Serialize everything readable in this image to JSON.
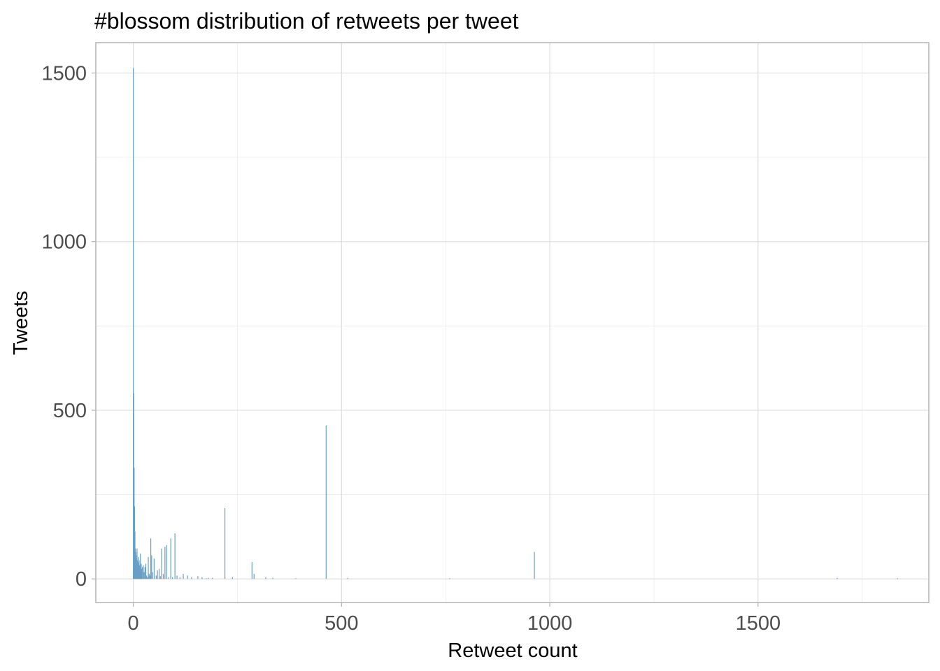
{
  "chart_data": {
    "type": "bar",
    "title": "#blossom distribution of retweets per tweet",
    "xlabel": "Retweet count",
    "ylabel": "Tweets",
    "xlim": [
      -90,
      1910
    ],
    "ylim": [
      -70,
      1590
    ],
    "x_ticks": [
      0,
      500,
      1000,
      1500
    ],
    "x_tick_labels": [
      "0",
      "500",
      "1000",
      "1500"
    ],
    "y_ticks": [
      0,
      500,
      1000,
      1500
    ],
    "y_tick_labels": [
      "0",
      "500",
      "1000",
      "1500"
    ],
    "grid": true,
    "bar_color": "#6a9fc4",
    "x": [
      0,
      1,
      2,
      3,
      4,
      5,
      6,
      7,
      8,
      9,
      10,
      11,
      12,
      13,
      14,
      15,
      16,
      17,
      18,
      19,
      20,
      22,
      24,
      26,
      28,
      30,
      32,
      34,
      36,
      38,
      40,
      42,
      44,
      46,
      50,
      55,
      58,
      62,
      65,
      68,
      72,
      76,
      80,
      85,
      90,
      94,
      100,
      105,
      112,
      120,
      130,
      140,
      155,
      165,
      175,
      180,
      190,
      220,
      238,
      285,
      290,
      318,
      335,
      390,
      463,
      515,
      760,
      963,
      1690,
      1835
    ],
    "values": [
      1515,
      550,
      330,
      215,
      140,
      90,
      80,
      70,
      60,
      90,
      55,
      50,
      45,
      65,
      55,
      30,
      40,
      75,
      25,
      45,
      30,
      35,
      40,
      20,
      35,
      45,
      10,
      5,
      65,
      15,
      10,
      120,
      70,
      20,
      60,
      10,
      25,
      30,
      8,
      90,
      15,
      95,
      100,
      5,
      120,
      5,
      135,
      10,
      5,
      15,
      10,
      5,
      8,
      5,
      2,
      3,
      3,
      210,
      5,
      50,
      15,
      5,
      3,
      2,
      455,
      3,
      2,
      80,
      3,
      2
    ]
  }
}
